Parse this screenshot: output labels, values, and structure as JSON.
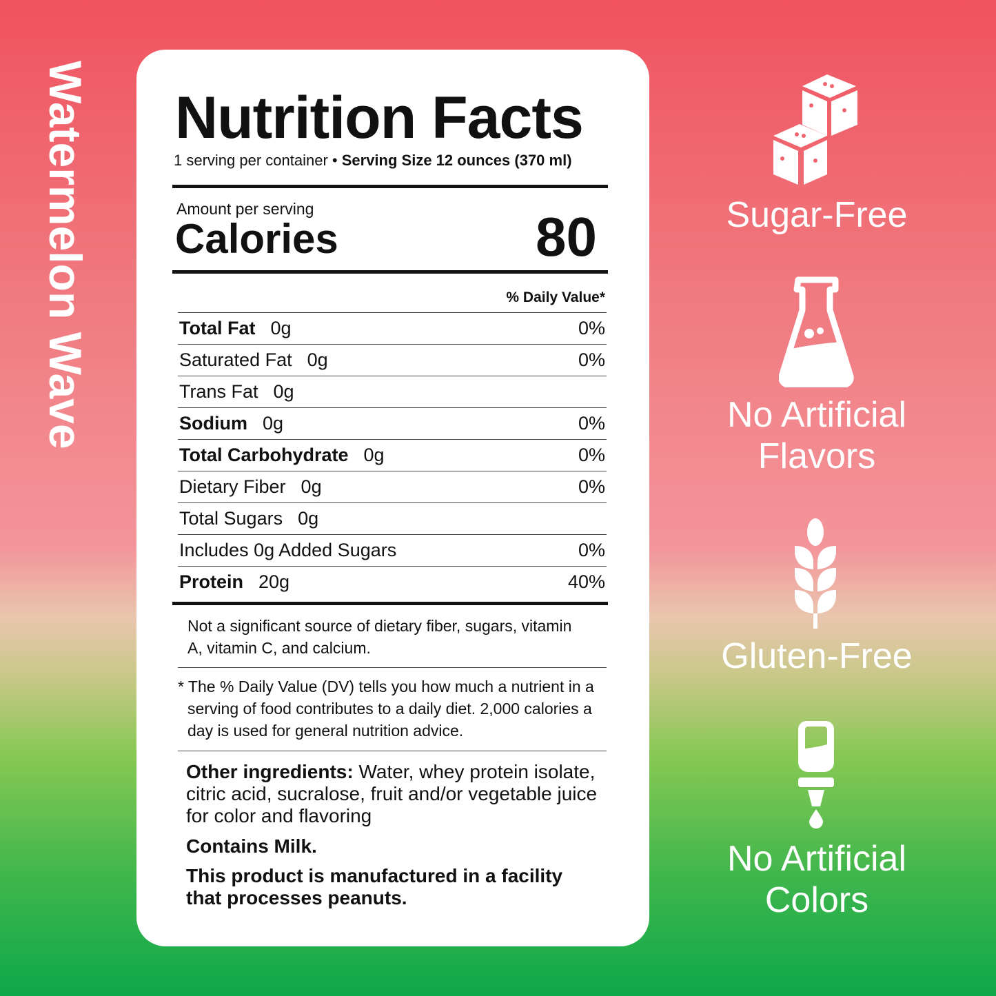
{
  "product_name": "Watermelon Wave",
  "label": {
    "title": "Nutrition Facts",
    "servings": "1 serving per container • ",
    "serving_size": "Serving Size 12 ounces (370 ml)",
    "amount_per_serving": "Amount per serving",
    "calories_label": "Calories",
    "calories_value": "80",
    "dv_header": "% Daily Value*",
    "rows": [
      {
        "name": "Total Fat",
        "amount": "0g",
        "dv": "0%",
        "bold": true
      },
      {
        "name": "Saturated Fat",
        "amount": "0g",
        "dv": "0%",
        "bold": false
      },
      {
        "name": "Trans Fat",
        "amount": "0g",
        "dv": "",
        "bold": false
      },
      {
        "name": "Sodium",
        "amount": "0g",
        "dv": "0%",
        "bold": true
      },
      {
        "name": "Total Carbohydrate",
        "amount": "0g",
        "dv": "0%",
        "bold": true
      },
      {
        "name": "Dietary Fiber",
        "amount": "0g",
        "dv": "0%",
        "bold": false
      },
      {
        "name": "Total Sugars",
        "amount": "0g",
        "dv": "",
        "bold": false
      },
      {
        "name": "Includes 0g Added Sugars",
        "amount": "",
        "dv": "0%",
        "bold": false
      },
      {
        "name": "Protein",
        "amount": "20g",
        "dv": "40%",
        "bold": true
      }
    ],
    "not_significant": "Not a significant source of dietary fiber, sugars, vitamin A, vitamin C, and calcium.",
    "dv_footnote": "* The % Daily Value (DV) tells you how much a nutrient in a serving of food contributes to a daily diet. 2,000 calories a day is used for general nutrition advice.",
    "ingredients_label": "Other ingredients:",
    "ingredients": " Water, whey protein isolate, citric acid, sucralose, fruit and/or vegetable juice for color and flavoring",
    "allergen": "Contains Milk.",
    "facility": "This product is manufactured in a facility that processes peanuts."
  },
  "badges": [
    {
      "label": "Sugar-Free",
      "icon": "sugar-cubes-icon"
    },
    {
      "label": "No Artificial Flavors",
      "icon": "flask-icon"
    },
    {
      "label": "Gluten-Free",
      "icon": "wheat-icon"
    },
    {
      "label": "No Artificial Colors",
      "icon": "dropper-icon"
    }
  ],
  "colors": {
    "top": "#f0525f",
    "middle": "#f3959a",
    "bottom": "#0ea84a",
    "text": "#111111"
  }
}
